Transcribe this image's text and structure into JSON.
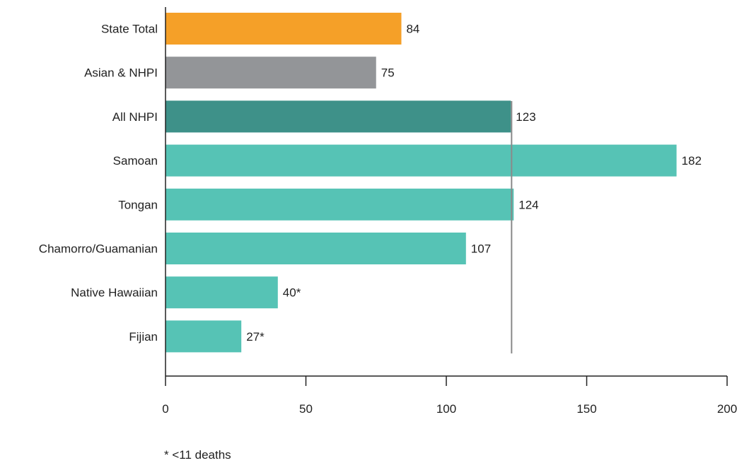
{
  "chart_data": {
    "type": "bar",
    "orientation": "horizontal",
    "categories": [
      "State Total",
      "Asian & NHPI",
      "All NHPI",
      "Samoan",
      "Tongan",
      "Chamorro/Guamanian",
      "Native Hawaiian",
      "Fijian"
    ],
    "values": [
      84,
      75,
      123,
      182,
      124,
      107,
      40,
      27
    ],
    "value_labels": [
      "84",
      "75",
      "123",
      "182",
      "124",
      "107",
      "40*",
      "27*"
    ],
    "colors": [
      "#F5A028",
      "#939598",
      "#3E9189",
      "#56C3B5",
      "#56C3B5",
      "#56C3B5",
      "#56C3B5",
      "#56C3B5"
    ],
    "reference_line": 123,
    "reference_line_color": "#8a8a8a",
    "xlim": [
      0,
      200
    ],
    "xticks": [
      0,
      50,
      100,
      150,
      200
    ],
    "xtick_labels": [
      "0",
      "50",
      "100",
      "150",
      "200"
    ],
    "grid": false,
    "title": "",
    "xlabel": "",
    "ylabel": ""
  },
  "footnote": "* <11 deaths"
}
